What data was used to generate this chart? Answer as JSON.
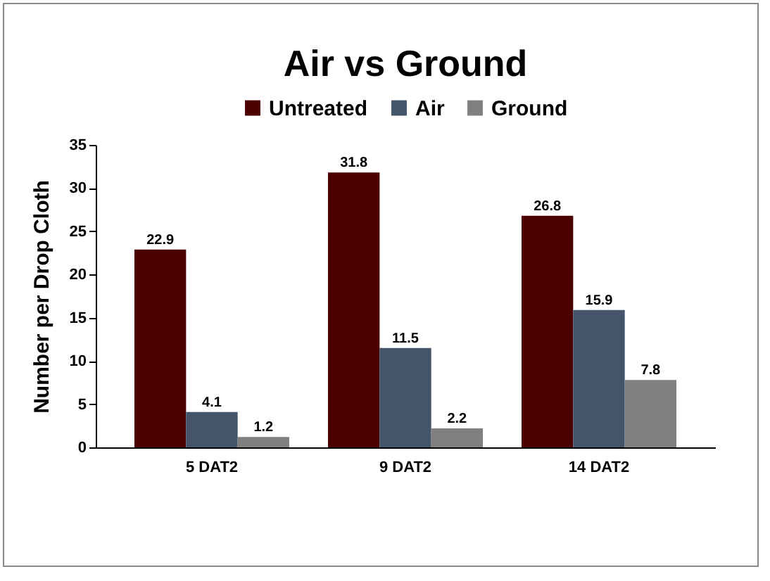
{
  "chart_data": {
    "type": "bar",
    "title": "Air vs Ground",
    "ylabel": "Number per Drop Cloth",
    "categories": [
      "5 DAT2",
      "9 DAT2",
      "14 DAT2"
    ],
    "series": [
      {
        "name": "Untreated",
        "color": "#4d0000",
        "values": [
          22.9,
          31.8,
          26.8
        ]
      },
      {
        "name": "Air",
        "color": "#44546a",
        "values": [
          4.1,
          11.5,
          15.9
        ]
      },
      {
        "name": "Ground",
        "color": "#808080",
        "values": [
          1.2,
          2.2,
          7.8
        ]
      }
    ],
    "ylim": [
      0,
      35
    ],
    "yticks": [
      0,
      5,
      10,
      15,
      20,
      25,
      30,
      35
    ],
    "data_labels": true,
    "legend": "top",
    "grid": false
  }
}
